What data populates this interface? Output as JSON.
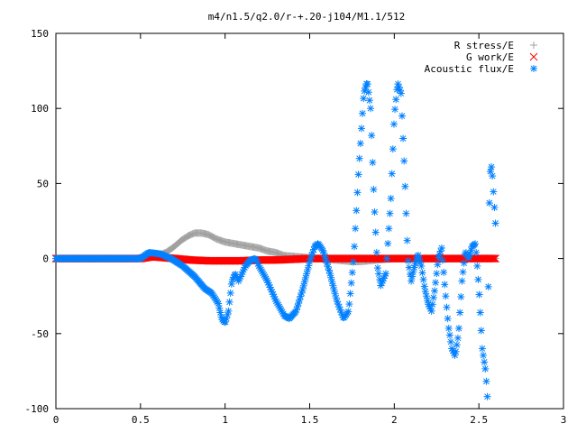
{
  "chart_data": {
    "type": "scatter",
    "title": "m4/n1.5/q2.0/r-+.20-j104/M1.1/512",
    "xlabel": "",
    "ylabel": "",
    "xlim": [
      0,
      3
    ],
    "ylim": [
      -100,
      150
    ],
    "x_ticks": [
      "0",
      "0.5",
      "1",
      "1.5",
      "2",
      "2.5",
      "3"
    ],
    "y_ticks": [
      "-100",
      "-50",
      "0",
      "50",
      "100",
      "150"
    ],
    "grid": false,
    "legend_position": "top-right",
    "series": [
      {
        "name": "R stress/E",
        "marker": "plus",
        "color": "#a0a0a0",
        "points": [
          [
            0.0,
            0
          ],
          [
            0.5,
            0
          ],
          [
            0.55,
            0.5
          ],
          [
            0.6,
            2
          ],
          [
            0.65,
            4
          ],
          [
            0.7,
            8
          ],
          [
            0.74,
            12
          ],
          [
            0.78,
            15
          ],
          [
            0.82,
            17
          ],
          [
            0.86,
            17
          ],
          [
            0.9,
            16
          ],
          [
            0.95,
            13
          ],
          [
            1.0,
            11
          ],
          [
            1.05,
            10
          ],
          [
            1.1,
            9
          ],
          [
            1.15,
            8
          ],
          [
            1.2,
            7
          ],
          [
            1.25,
            5
          ],
          [
            1.3,
            4
          ],
          [
            1.35,
            2
          ],
          [
            1.4,
            1.5
          ],
          [
            1.45,
            1
          ],
          [
            1.5,
            0.5
          ],
          [
            1.55,
            0
          ],
          [
            1.6,
            -0.5
          ],
          [
            1.65,
            -1
          ],
          [
            1.7,
            -1.5
          ],
          [
            1.75,
            -2
          ],
          [
            1.8,
            -2
          ],
          [
            1.85,
            -1.5
          ],
          [
            1.9,
            -1
          ],
          [
            1.95,
            -0.5
          ],
          [
            2.0,
            0
          ],
          [
            2.1,
            0
          ],
          [
            2.2,
            0
          ],
          [
            2.3,
            0
          ],
          [
            2.4,
            0
          ],
          [
            2.5,
            0
          ],
          [
            2.6,
            0
          ]
        ]
      },
      {
        "name": "G work/E",
        "marker": "cross",
        "color": "#ff0000",
        "points": [
          [
            0.0,
            0
          ],
          [
            0.5,
            0
          ],
          [
            0.55,
            1
          ],
          [
            0.6,
            1
          ],
          [
            0.65,
            0.5
          ],
          [
            0.7,
            0
          ],
          [
            0.75,
            -0.5
          ],
          [
            0.8,
            -1
          ],
          [
            0.9,
            -1.5
          ],
          [
            1.0,
            -1.5
          ],
          [
            1.1,
            -1.5
          ],
          [
            1.2,
            -1
          ],
          [
            1.3,
            -1
          ],
          [
            1.4,
            -0.5
          ],
          [
            1.5,
            0
          ],
          [
            1.6,
            0
          ],
          [
            1.7,
            0
          ],
          [
            1.8,
            0
          ],
          [
            1.9,
            0
          ],
          [
            2.0,
            0
          ],
          [
            2.1,
            0
          ],
          [
            2.2,
            0
          ],
          [
            2.3,
            0
          ],
          [
            2.4,
            0
          ],
          [
            2.5,
            0
          ],
          [
            2.6,
            0
          ]
        ]
      },
      {
        "name": "Acoustic flux/E",
        "marker": "star",
        "color": "#0080ff",
        "points": [
          [
            0.0,
            0
          ],
          [
            0.5,
            0
          ],
          [
            0.55,
            4
          ],
          [
            0.62,
            3
          ],
          [
            0.68,
            0
          ],
          [
            0.75,
            -5
          ],
          [
            0.82,
            -12
          ],
          [
            0.88,
            -20
          ],
          [
            0.92,
            -23
          ],
          [
            0.96,
            -30
          ],
          [
            0.98,
            -40
          ],
          [
            1.0,
            -43
          ],
          [
            1.02,
            -35
          ],
          [
            1.04,
            -15
          ],
          [
            1.06,
            -10
          ],
          [
            1.08,
            -15
          ],
          [
            1.1,
            -10
          ],
          [
            1.12,
            -5
          ],
          [
            1.15,
            -1
          ],
          [
            1.18,
            0
          ],
          [
            1.2,
            -5
          ],
          [
            1.25,
            -15
          ],
          [
            1.3,
            -28
          ],
          [
            1.35,
            -38
          ],
          [
            1.38,
            -40
          ],
          [
            1.42,
            -35
          ],
          [
            1.46,
            -20
          ],
          [
            1.5,
            -2
          ],
          [
            1.53,
            8
          ],
          [
            1.55,
            10
          ],
          [
            1.58,
            5
          ],
          [
            1.62,
            -10
          ],
          [
            1.66,
            -28
          ],
          [
            1.7,
            -40
          ],
          [
            1.73,
            -35
          ],
          [
            1.76,
            0
          ],
          [
            1.79,
            60
          ],
          [
            1.82,
            110
          ],
          [
            1.84,
            118
          ],
          [
            1.86,
            100
          ],
          [
            1.88,
            40
          ],
          [
            1.9,
            -5
          ],
          [
            1.92,
            -18
          ],
          [
            1.95,
            -10
          ],
          [
            1.98,
            40
          ],
          [
            2.0,
            95
          ],
          [
            2.02,
            117
          ],
          [
            2.04,
            110
          ],
          [
            2.06,
            60
          ],
          [
            2.08,
            0
          ],
          [
            2.1,
            -15
          ],
          [
            2.12,
            -5
          ],
          [
            2.14,
            3
          ],
          [
            2.16,
            -5
          ],
          [
            2.18,
            -20
          ],
          [
            2.2,
            -30
          ],
          [
            2.22,
            -35
          ],
          [
            2.24,
            -20
          ],
          [
            2.26,
            0
          ],
          [
            2.28,
            7
          ],
          [
            2.3,
            -20
          ],
          [
            2.32,
            -45
          ],
          [
            2.34,
            -60
          ],
          [
            2.36,
            -65
          ],
          [
            2.38,
            -50
          ],
          [
            2.4,
            -15
          ],
          [
            2.42,
            5
          ],
          [
            2.44,
            0
          ],
          [
            2.46,
            8
          ],
          [
            2.48,
            10
          ],
          [
            2.5,
            -20
          ],
          [
            2.52,
            -60
          ],
          [
            2.54,
            -75
          ],
          [
            2.55,
            -92
          ],
          [
            2.56,
            30
          ],
          [
            2.57,
            65
          ],
          [
            2.58,
            55
          ],
          [
            2.6,
            20
          ]
        ]
      }
    ]
  }
}
